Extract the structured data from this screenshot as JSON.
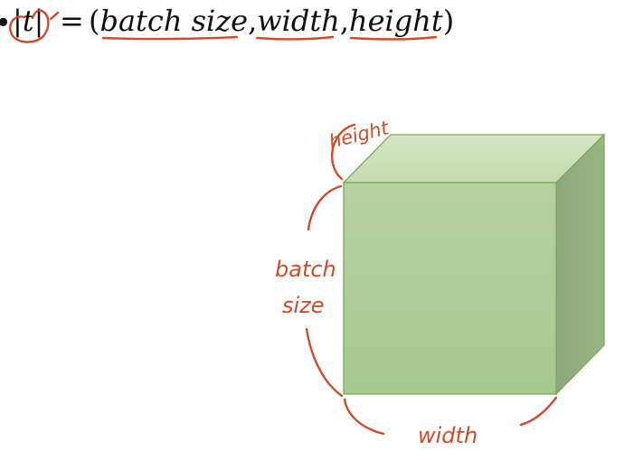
{
  "formula": {
    "bullet": "•",
    "abs_open": "|",
    "variable": "t",
    "abs_close": "|",
    "equals": "=",
    "open_paren": "(",
    "dim1": "batch size",
    "comma1": ",",
    "dim2": "width",
    "comma2": ",",
    "dim3": "height",
    "close_paren": ")"
  },
  "annotations": {
    "height": "height",
    "batch_line1": "batch",
    "batch_line2": "size",
    "width": "width"
  },
  "colors": {
    "ink": "#cf4a28",
    "cube_front": "#b3cf9a",
    "cube_top": "#cde0bd",
    "cube_side": "#93ac7d",
    "cube_edge": "#7fa85a"
  }
}
